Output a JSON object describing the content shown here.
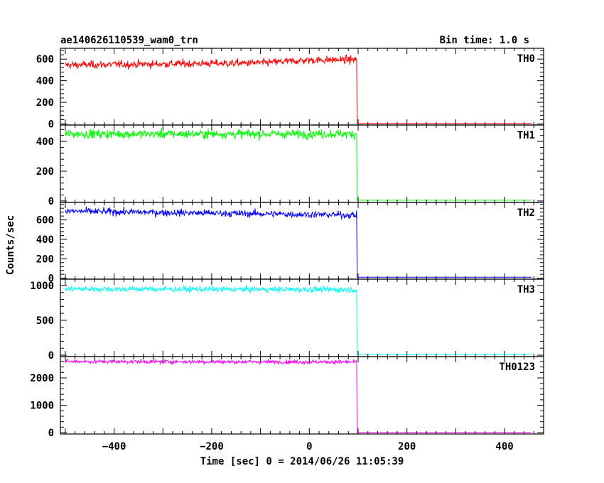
{
  "chart_data": {
    "type": "line",
    "title_left": "ae140626110539_wam0_trn",
    "title_right": "Bin time: 1.0 s",
    "xlabel": "Time [sec] 0 = 2014/06/26 11:05:39",
    "ylabel": "Counts/sec",
    "xlim": [
      -510,
      480
    ],
    "xticks": [
      -400,
      -200,
      0,
      200,
      400
    ],
    "x_start": -500,
    "x_drop": 98,
    "x_end": 455,
    "grid": false,
    "panels": [
      {
        "name": "TH0",
        "color": "#ff0000",
        "ylim": [
          -10,
          700
        ],
        "yticks": [
          0,
          200,
          400,
          600
        ],
        "before_level": [
          [
            -500,
            545
          ],
          [
            -300,
            555
          ],
          [
            -100,
            565
          ],
          [
            0,
            590
          ],
          [
            97,
            595
          ]
        ],
        "noise": 30,
        "after_level": 5
      },
      {
        "name": "TH1",
        "color": "#00ff00",
        "ylim": [
          -10,
          510
        ],
        "yticks": [
          0,
          200,
          400
        ],
        "before_level": [
          [
            -500,
            450
          ],
          [
            97,
            450
          ]
        ],
        "noise": 25,
        "after_level": 5
      },
      {
        "name": "TH2",
        "color": "#0000ff",
        "ylim": [
          -10,
          780
        ],
        "yticks": [
          0,
          200,
          400,
          600
        ],
        "before_level": [
          [
            -500,
            690
          ],
          [
            97,
            650
          ]
        ],
        "noise": 30,
        "after_level": 10
      },
      {
        "name": "TH3",
        "color": "#00ffff",
        "ylim": [
          -20,
          1090
        ],
        "yticks": [
          0,
          500,
          1000
        ],
        "before_level": [
          [
            -500,
            950
          ],
          [
            97,
            940
          ]
        ],
        "noise": 35,
        "after_level": 10
      },
      {
        "name": "TH0123",
        "color": "#ff00ff",
        "ylim": [
          -50,
          2780
        ],
        "yticks": [
          0,
          1000,
          2000
        ],
        "before_level": [
          [
            -500,
            2600
          ],
          [
            97,
            2580
          ]
        ],
        "noise": 60,
        "after_level": 10
      }
    ]
  }
}
